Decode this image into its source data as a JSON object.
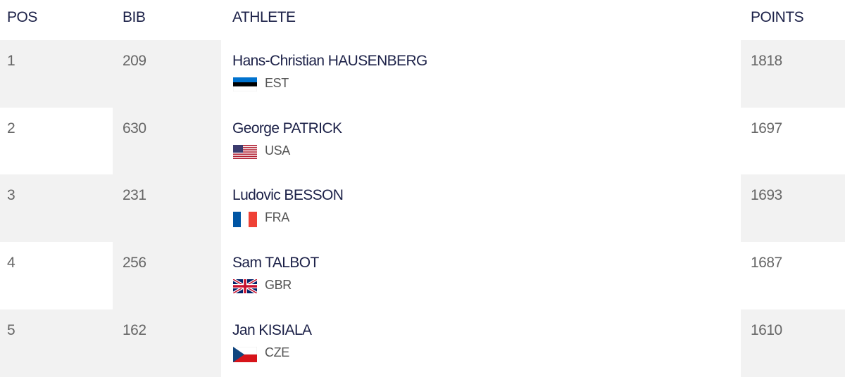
{
  "table": {
    "header": [
      "POS",
      "BIB",
      "ATHLETE",
      "POINTS"
    ],
    "rows": [
      {
        "pos": 1,
        "bib": 209,
        "athlete": "Hans-Christian HAUSENBERG",
        "country": "EST",
        "points": 1818
      },
      {
        "pos": 2,
        "bib": 630,
        "athlete": "George PATRICK",
        "country": "USA",
        "points": 1697
      },
      {
        "pos": 3,
        "bib": 231,
        "athlete": "Ludovic BESSON",
        "country": "FRA",
        "points": 1693
      },
      {
        "pos": 4,
        "bib": 256,
        "athlete": "Sam TALBOT",
        "country": "GBR",
        "points": 1687
      },
      {
        "pos": 5,
        "bib": 162,
        "athlete": "Jan KISIALA",
        "country": "CZE",
        "points": 1610
      }
    ]
  }
}
